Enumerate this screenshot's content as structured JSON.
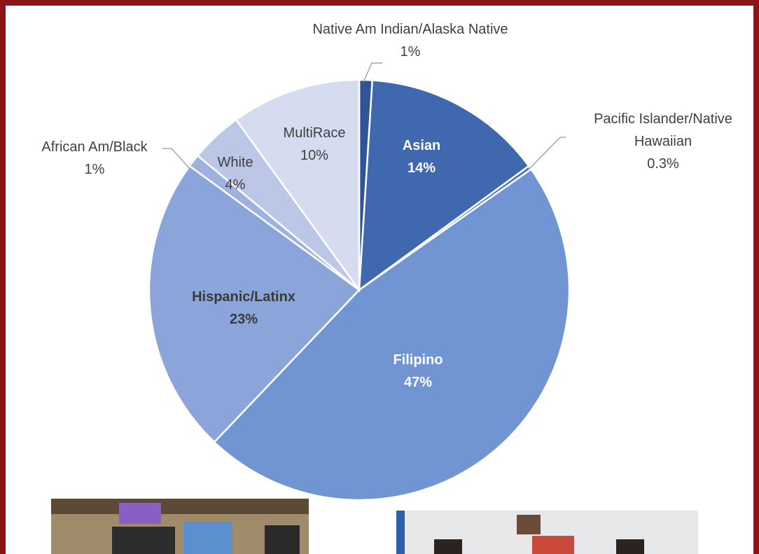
{
  "chart_data": {
    "type": "pie",
    "categories": [
      "Native Am Indian/Alaska Native",
      "Asian",
      "Pacific Islander/Native Hawaiian",
      "Filipino",
      "Hispanic/Latinx",
      "African Am/Black",
      "White",
      "MultiRace"
    ],
    "values": [
      1,
      14,
      0.3,
      47,
      23,
      1,
      4,
      10
    ],
    "value_labels": [
      "1%",
      "14%",
      "0.3%",
      "47%",
      "23%",
      "1%",
      "4%",
      "10%"
    ],
    "colors": [
      "#2f5597",
      "#4068ae",
      "#4a74c0",
      "#7095d2",
      "#8ba5da",
      "#9fb2de",
      "#bcc7e7",
      "#d6dcf0"
    ]
  }
}
